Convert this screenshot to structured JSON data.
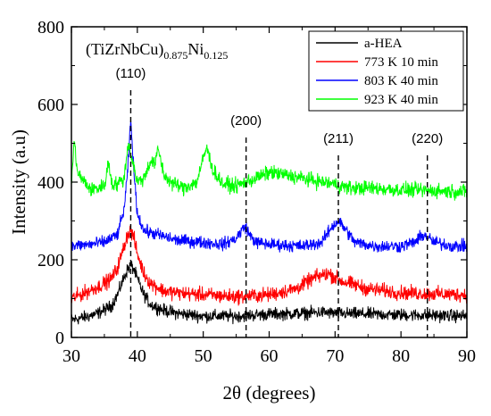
{
  "chart_data": {
    "type": "line",
    "title": "(TiZrNbCu)0.875Ni0.125",
    "title_parts": {
      "base": "(TiZrNbCu)",
      "sub1": "0.875",
      "mid": "Ni",
      "sub2": "0.125"
    },
    "xlabel": "2θ (degrees)",
    "ylabel": "Intensity (a.u)",
    "xlim": [
      30,
      90
    ],
    "ylim": [
      0,
      800
    ],
    "xticks": [
      30,
      40,
      50,
      60,
      70,
      80,
      90
    ],
    "yticks": [
      0,
      200,
      400,
      600,
      800
    ],
    "grid": false,
    "legend_position": "top-right",
    "series": [
      {
        "name": "a-HEA",
        "color": "#000000",
        "x": [
          30,
          32,
          34,
          36,
          37,
          38,
          38.5,
          39,
          39.5,
          40,
          41,
          42,
          44,
          46,
          50,
          55,
          60,
          65,
          68,
          70,
          75,
          80,
          85,
          90
        ],
        "values": [
          45,
          52,
          62,
          80,
          110,
          155,
          175,
          185,
          175,
          150,
          110,
          85,
          70,
          62,
          55,
          55,
          60,
          62,
          65,
          62,
          60,
          58,
          57,
          55
        ]
      },
      {
        "name": "773 K 10 min",
        "color": "#ff0000",
        "x": [
          30,
          32,
          34,
          36,
          37,
          38,
          38.5,
          39,
          39.5,
          40,
          41,
          42,
          44,
          46,
          50,
          55,
          60,
          64,
          67,
          69,
          71,
          75,
          80,
          85,
          90
        ],
        "values": [
          100,
          115,
          130,
          150,
          180,
          235,
          265,
          275,
          255,
          215,
          165,
          140,
          120,
          115,
          110,
          105,
          110,
          125,
          155,
          165,
          145,
          125,
          115,
          112,
          110
        ]
      },
      {
        "name": "803 K 40 min",
        "color": "#0000ff",
        "x": [
          30,
          33,
          35,
          37,
          38,
          38.5,
          39,
          39.5,
          40,
          41,
          43,
          46,
          50,
          53,
          55,
          56,
          56.5,
          57,
          58,
          60,
          65,
          68,
          69.5,
          70.5,
          71.5,
          73,
          76,
          80,
          82,
          83.5,
          85,
          88,
          90
        ],
        "values": [
          235,
          240,
          245,
          265,
          330,
          420,
          560,
          420,
          320,
          275,
          265,
          250,
          245,
          240,
          255,
          280,
          285,
          265,
          245,
          240,
          235,
          245,
          285,
          300,
          280,
          245,
          235,
          235,
          245,
          265,
          245,
          235,
          235
        ]
      },
      {
        "name": "923 K 40 min",
        "color": "#00ff00",
        "x": [
          30,
          30.4,
          31,
          33,
          35,
          35.6,
          36.2,
          37,
          38,
          38.6,
          39.2,
          40,
          41,
          42,
          42.6,
          43.2,
          44,
          45,
          47,
          49,
          50.5,
          51.5,
          53,
          55,
          58,
          60,
          62,
          65,
          68,
          70,
          72,
          75,
          80,
          85,
          90
        ],
        "values": [
          390,
          505,
          420,
          380,
          390,
          450,
          395,
          395,
          410,
          500,
          460,
          400,
          410,
          455,
          445,
          485,
          420,
          400,
          385,
          400,
          490,
          430,
          395,
          390,
          410,
          425,
          420,
          410,
          400,
          395,
          385,
          385,
          380,
          378,
          375
        ]
      }
    ],
    "annotations": [
      {
        "label": "(110)",
        "x": 39
      },
      {
        "label": "(200)",
        "x": 56.5
      },
      {
        "label": "(211)",
        "x": 70.5
      },
      {
        "label": "(220)",
        "x": 84
      }
    ]
  }
}
